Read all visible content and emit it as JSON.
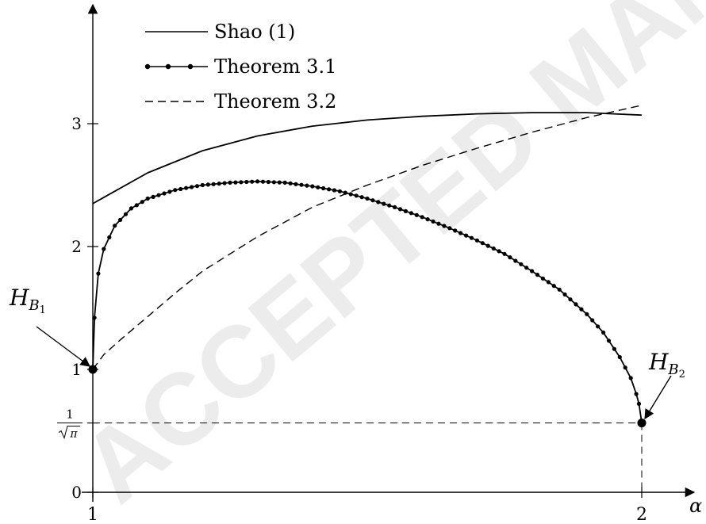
{
  "chart_data": {
    "type": "line",
    "watermark": "ACCEPTED MANUSCRIPT",
    "x_axis_label": "α",
    "x_ticks": [
      {
        "value": 1,
        "label": "1"
      },
      {
        "value": 2,
        "label": "2"
      }
    ],
    "y_ticks": [
      {
        "value": 0,
        "label": "0"
      },
      {
        "value": 1,
        "label": "1"
      },
      {
        "value": 2,
        "label": "2"
      },
      {
        "value": 3,
        "label": "3"
      }
    ],
    "special_y_tick": {
      "value": 0.5642,
      "numerator": "1",
      "denominator": "π"
    },
    "xlim": [
      1,
      2.11
    ],
    "ylim": [
      0,
      3.85
    ],
    "legend_position": "top-left",
    "series": [
      {
        "name": "Shao (1)",
        "style": "solid",
        "x": [
          1.0,
          1.1,
          1.2,
          1.3,
          1.4,
          1.5,
          1.6,
          1.7,
          1.8,
          1.9,
          2.0
        ],
        "y": [
          2.35,
          2.6,
          2.78,
          2.9,
          2.98,
          3.03,
          3.06,
          3.08,
          3.09,
          3.09,
          3.07
        ]
      },
      {
        "name": "Theorem 3.1",
        "style": "solid-dotted",
        "x": [
          1.0,
          1.003,
          1.01,
          1.02,
          1.04,
          1.07,
          1.1,
          1.15,
          1.2,
          1.25,
          1.3,
          1.35,
          1.4,
          1.45,
          1.5,
          1.55,
          1.6,
          1.65,
          1.7,
          1.75,
          1.8,
          1.85,
          1.9,
          1.93,
          1.96,
          1.98,
          1.99,
          1.995,
          2.0
        ],
        "y": [
          1.0,
          1.42,
          1.78,
          1.98,
          2.17,
          2.31,
          2.39,
          2.46,
          2.5,
          2.52,
          2.53,
          2.52,
          2.49,
          2.45,
          2.39,
          2.32,
          2.24,
          2.15,
          2.05,
          1.94,
          1.8,
          1.65,
          1.45,
          1.3,
          1.1,
          0.93,
          0.8,
          0.72,
          0.5642
        ]
      },
      {
        "name": "Theorem 3.2",
        "style": "dashed",
        "x": [
          1.0,
          1.02,
          1.05,
          1.1,
          1.15,
          1.2,
          1.3,
          1.4,
          1.5,
          1.6,
          1.7,
          1.8,
          1.9,
          2.0
        ],
        "y": [
          1.0,
          1.12,
          1.24,
          1.43,
          1.62,
          1.8,
          2.08,
          2.32,
          2.5,
          2.66,
          2.8,
          2.93,
          3.05,
          3.15
        ]
      }
    ],
    "annotations": [
      {
        "label_main": "H",
        "label_sub": "B",
        "label_subsub": "1",
        "x": 1,
        "y": 1
      },
      {
        "label_main": "H",
        "label_sub": "B",
        "label_subsub": "2",
        "x": 2,
        "y": 0.5642
      }
    ]
  }
}
